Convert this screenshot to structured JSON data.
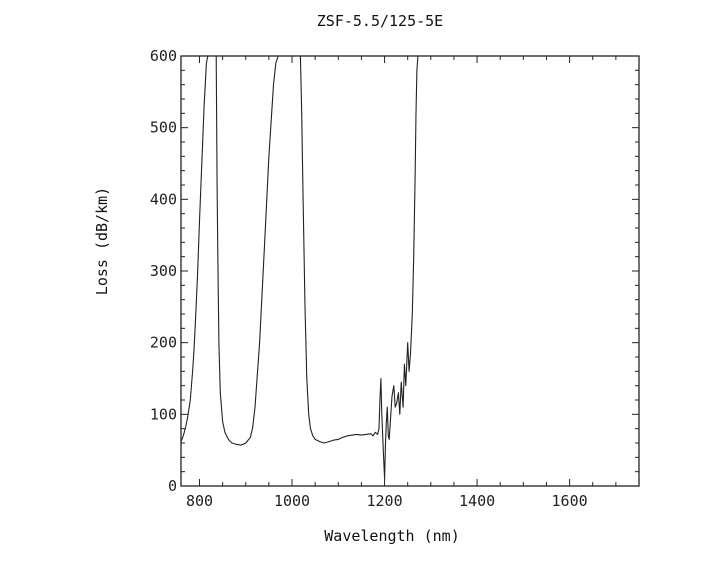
{
  "chart_data": {
    "type": "line",
    "title": "ZSF-5.5/125-5E",
    "xlabel": "Wavelength (nm)",
    "ylabel": "Loss (dB/km)",
    "xlim": [
      760,
      1750
    ],
    "ylim": [
      0,
      600
    ],
    "x_ticks": [
      800,
      1000,
      1200,
      1400,
      1600
    ],
    "y_ticks": [
      0,
      100,
      200,
      300,
      400,
      500,
      600
    ],
    "x_tick_labels": [
      "800",
      "1000",
      "1200",
      "1400",
      "1600"
    ],
    "y_tick_labels": [
      "0",
      "100",
      "200",
      "300",
      "400",
      "500",
      "600"
    ],
    "grid": false,
    "series": [
      {
        "x": [
          760,
          765,
          770,
          775,
          780,
          785,
          788,
          792,
          796,
          800,
          805,
          810,
          815,
          818,
          822,
          825,
          829,
          836,
          837,
          838,
          840,
          842,
          845,
          850,
          855,
          860,
          865,
          870,
          880,
          890,
          900,
          910,
          915,
          920,
          930,
          940,
          950,
          960,
          965,
          970,
          973,
          976,
          978,
          1018,
          1021,
          1024,
          1028,
          1032,
          1036,
          1040,
          1045,
          1050,
          1060,
          1070,
          1080,
          1090,
          1100,
          1110,
          1120,
          1130,
          1140,
          1150,
          1160,
          1170,
          1175,
          1180,
          1185,
          1188,
          1190,
          1192,
          1194,
          1196,
          1198,
          1200,
          1202,
          1204,
          1206,
          1208,
          1210,
          1213,
          1216,
          1220,
          1223,
          1226,
          1230,
          1233,
          1236,
          1240,
          1243,
          1246,
          1250,
          1253,
          1256,
          1260,
          1263,
          1266,
          1268,
          1270,
          1272,
          1274,
          1276,
          1278
        ],
        "y": [
          62,
          70,
          82,
          98,
          120,
          160,
          190,
          240,
          300,
          370,
          450,
          530,
          590,
          600,
          600,
          600,
          600,
          600,
          520,
          420,
          300,
          200,
          130,
          90,
          75,
          68,
          63,
          60,
          58,
          57,
          60,
          68,
          82,
          110,
          200,
          330,
          460,
          560,
          590,
          600,
          600,
          600,
          600,
          600,
          520,
          400,
          250,
          150,
          100,
          80,
          70,
          65,
          62,
          60,
          62,
          64,
          65,
          68,
          70,
          71,
          72,
          71,
          72,
          73,
          70,
          75,
          72,
          80,
          120,
          150,
          100,
          70,
          40,
          10,
          60,
          90,
          110,
          70,
          65,
          95,
          125,
          140,
          110,
          115,
          130,
          100,
          145,
          110,
          170,
          140,
          200,
          160,
          185,
          240,
          320,
          430,
          520,
          580,
          600,
          600,
          600,
          600
        ]
      }
    ]
  }
}
